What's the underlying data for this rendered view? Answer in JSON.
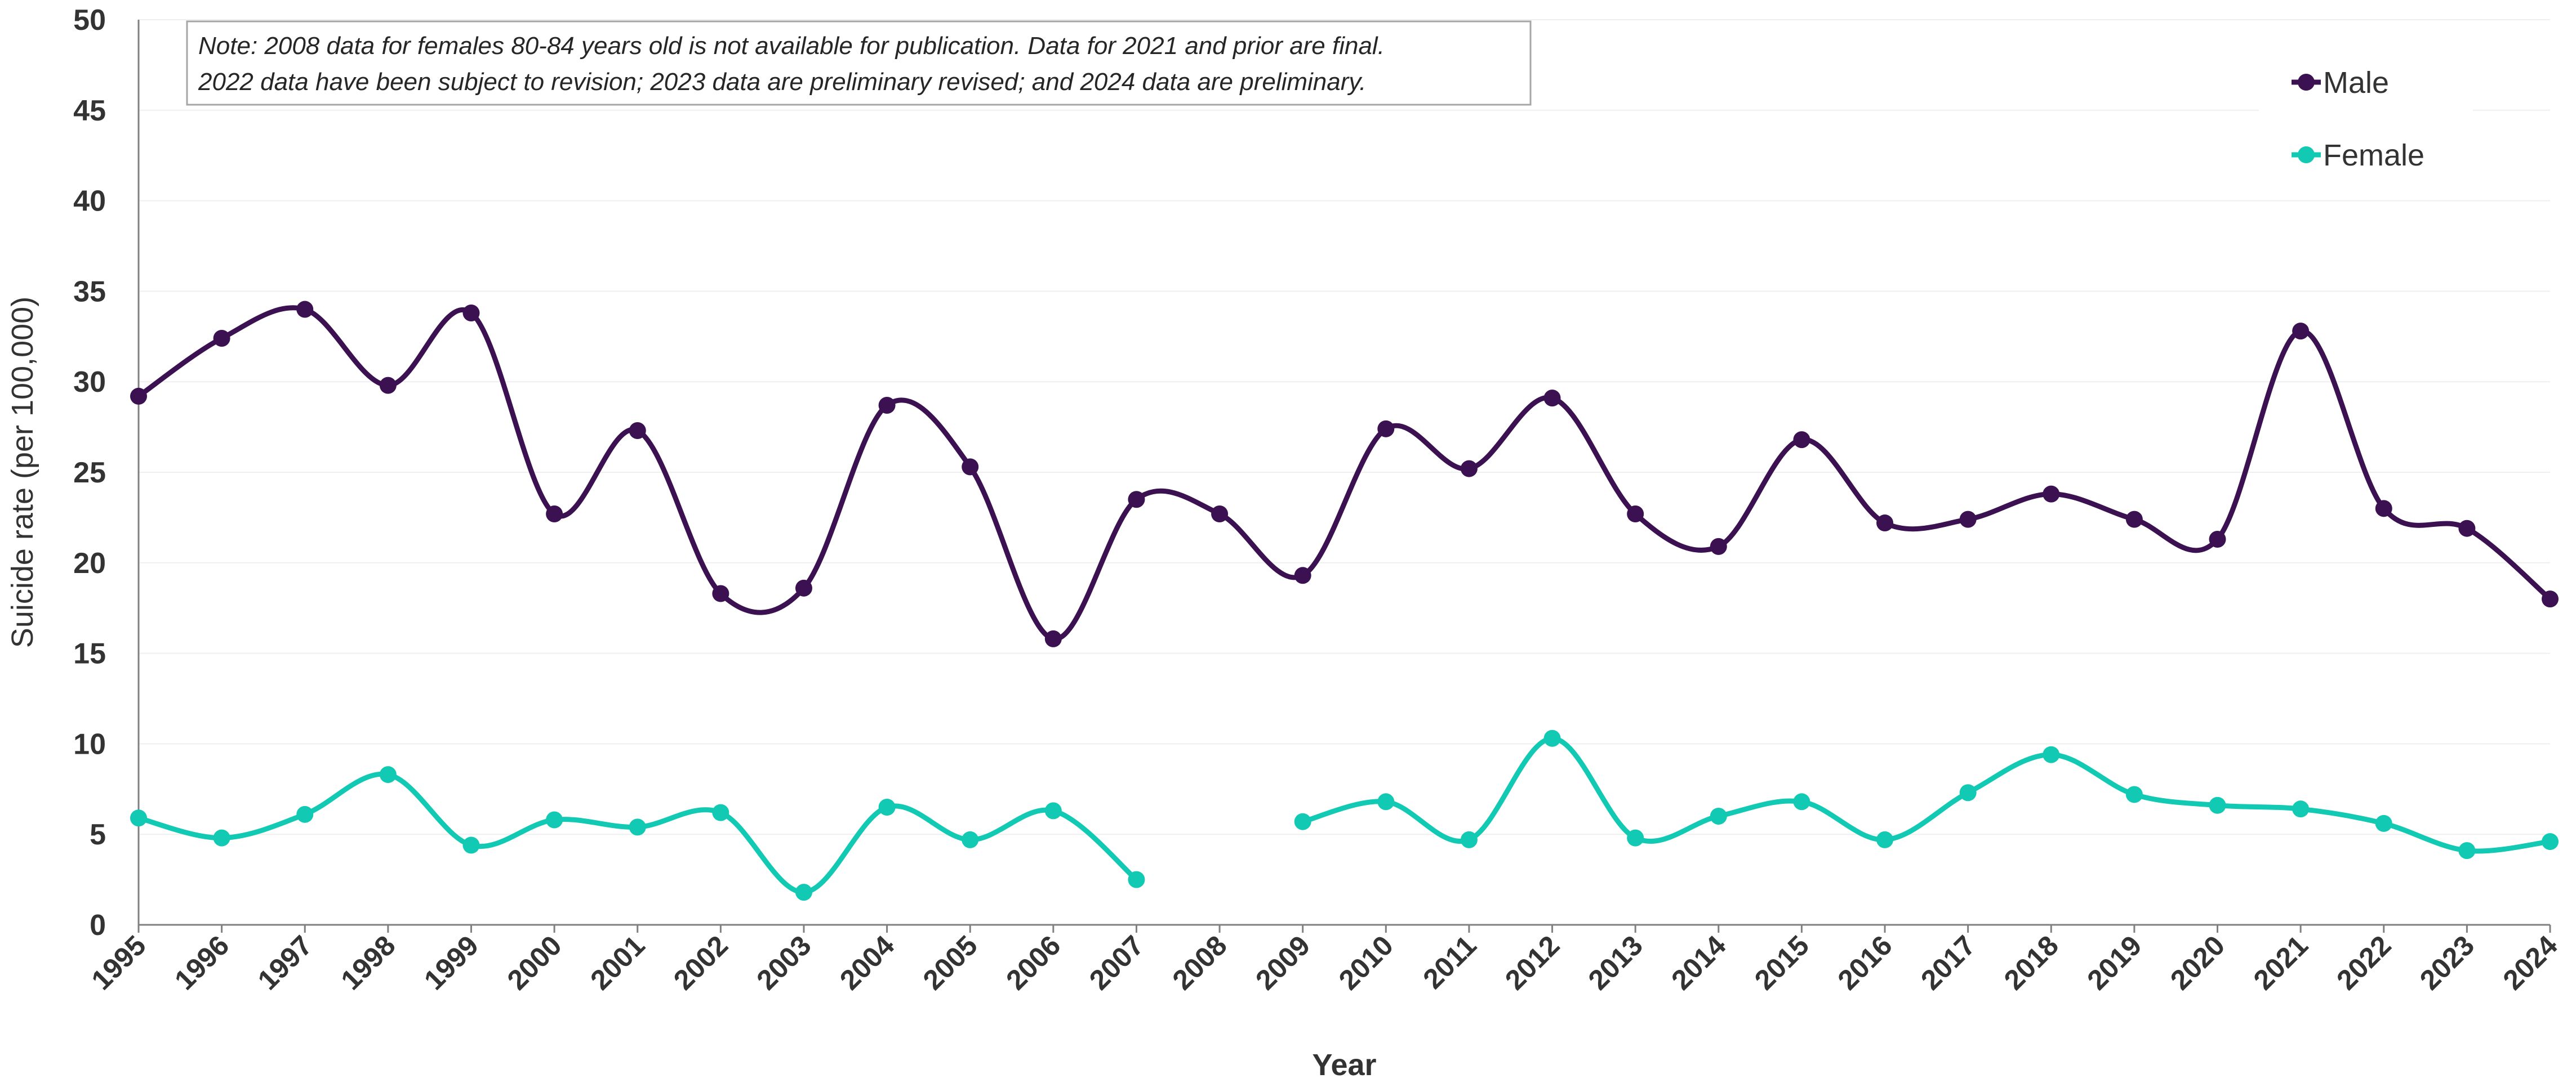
{
  "chart_data": {
    "type": "line",
    "xlabel": "Year",
    "ylabel": "Suicide rate (per 100,000)",
    "ylim": [
      0,
      50
    ],
    "yticks": [
      0,
      5,
      10,
      15,
      20,
      25,
      30,
      35,
      40,
      45,
      50
    ],
    "grid": "horizontal",
    "legend_position": "top-right",
    "note": [
      "Note: 2008 data for females 80-84 years old is not available for publication. Data for 2021 and prior are final.",
      "2022 data have been subject to revision; 2023 data are preliminary revised; and 2024 data are preliminary."
    ],
    "x": [
      "1995",
      "1996",
      "1997",
      "1998",
      "1999",
      "2000",
      "2001",
      "2002",
      "2003",
      "2004",
      "2005",
      "2006",
      "2007",
      "2008",
      "2009",
      "2010",
      "2011",
      "2012",
      "2013",
      "2014",
      "2015",
      "2016",
      "2017",
      "2018",
      "2019",
      "2020",
      "2021",
      "2022",
      "2023",
      "2024"
    ],
    "series": [
      {
        "name": "Male",
        "color": "#3b1152",
        "values": [
          29.2,
          32.4,
          34.0,
          29.8,
          33.8,
          22.7,
          27.3,
          18.3,
          18.6,
          28.7,
          25.3,
          15.8,
          23.5,
          22.7,
          19.3,
          27.4,
          25.2,
          29.1,
          22.7,
          20.9,
          26.8,
          22.2,
          22.4,
          23.8,
          22.4,
          21.3,
          32.8,
          23.0,
          21.9,
          18.0
        ]
      },
      {
        "name": "Female",
        "color": "#12c9b4",
        "values": [
          5.9,
          4.8,
          6.1,
          8.3,
          4.4,
          5.8,
          5.4,
          6.2,
          1.8,
          6.5,
          4.7,
          6.3,
          2.5,
          null,
          5.7,
          6.8,
          4.7,
          10.3,
          4.8,
          6.0,
          6.8,
          4.7,
          7.3,
          9.4,
          7.2,
          6.6,
          6.4,
          5.6,
          4.1,
          4.6
        ]
      }
    ]
  }
}
